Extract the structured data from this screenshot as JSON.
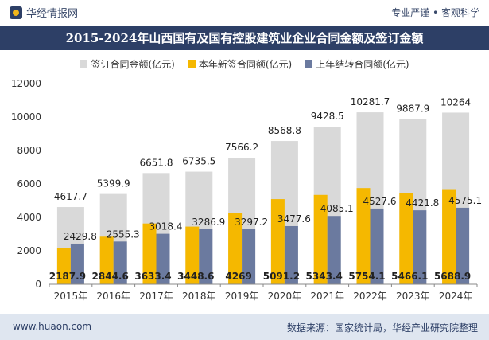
{
  "header": {
    "brand": "华经情报网",
    "tagline": "专业严谨 • 客观科学",
    "title": "2015-2024年山西国有及国有控股建筑业企业合同金额及签订金额"
  },
  "footer": {
    "website": "www.huaon.com",
    "source": "数据来源：国家统计局，华经产业研究院整理"
  },
  "colors": {
    "total": "#d9d9d9",
    "new": "#f5b800",
    "carry": "#6b7a9f",
    "title_bg": "#2d3f66"
  },
  "chart_data": {
    "type": "bar",
    "categories": [
      "2015年",
      "2016年",
      "2017年",
      "2018年",
      "2019年",
      "2020年",
      "2021年",
      "2022年",
      "2023年",
      "2024年"
    ],
    "series": [
      {
        "name": "签订合同金额(亿元)",
        "values": [
          4617.7,
          5399.9,
          6651.8,
          6735.5,
          7566.2,
          8568.8,
          9428.5,
          10281.7,
          9887.9,
          10264
        ]
      },
      {
        "name": "本年新签合同额(亿元)",
        "values": [
          2187.9,
          2844.6,
          3633.4,
          3448.6,
          4269,
          5091.2,
          5343.4,
          5754.1,
          5466.1,
          5688.9
        ]
      },
      {
        "name": "上年结转合同额(亿元)",
        "values": [
          2429.8,
          2555.3,
          3018.4,
          3286.9,
          3297.2,
          3477.6,
          4085.1,
          4527.6,
          4421.8,
          4575.1
        ]
      }
    ],
    "y_ticks": [
      0,
      2000,
      4000,
      6000,
      8000,
      10000,
      12000
    ],
    "ylim": [
      0,
      12000
    ],
    "legend_position": "top",
    "grid": false
  }
}
